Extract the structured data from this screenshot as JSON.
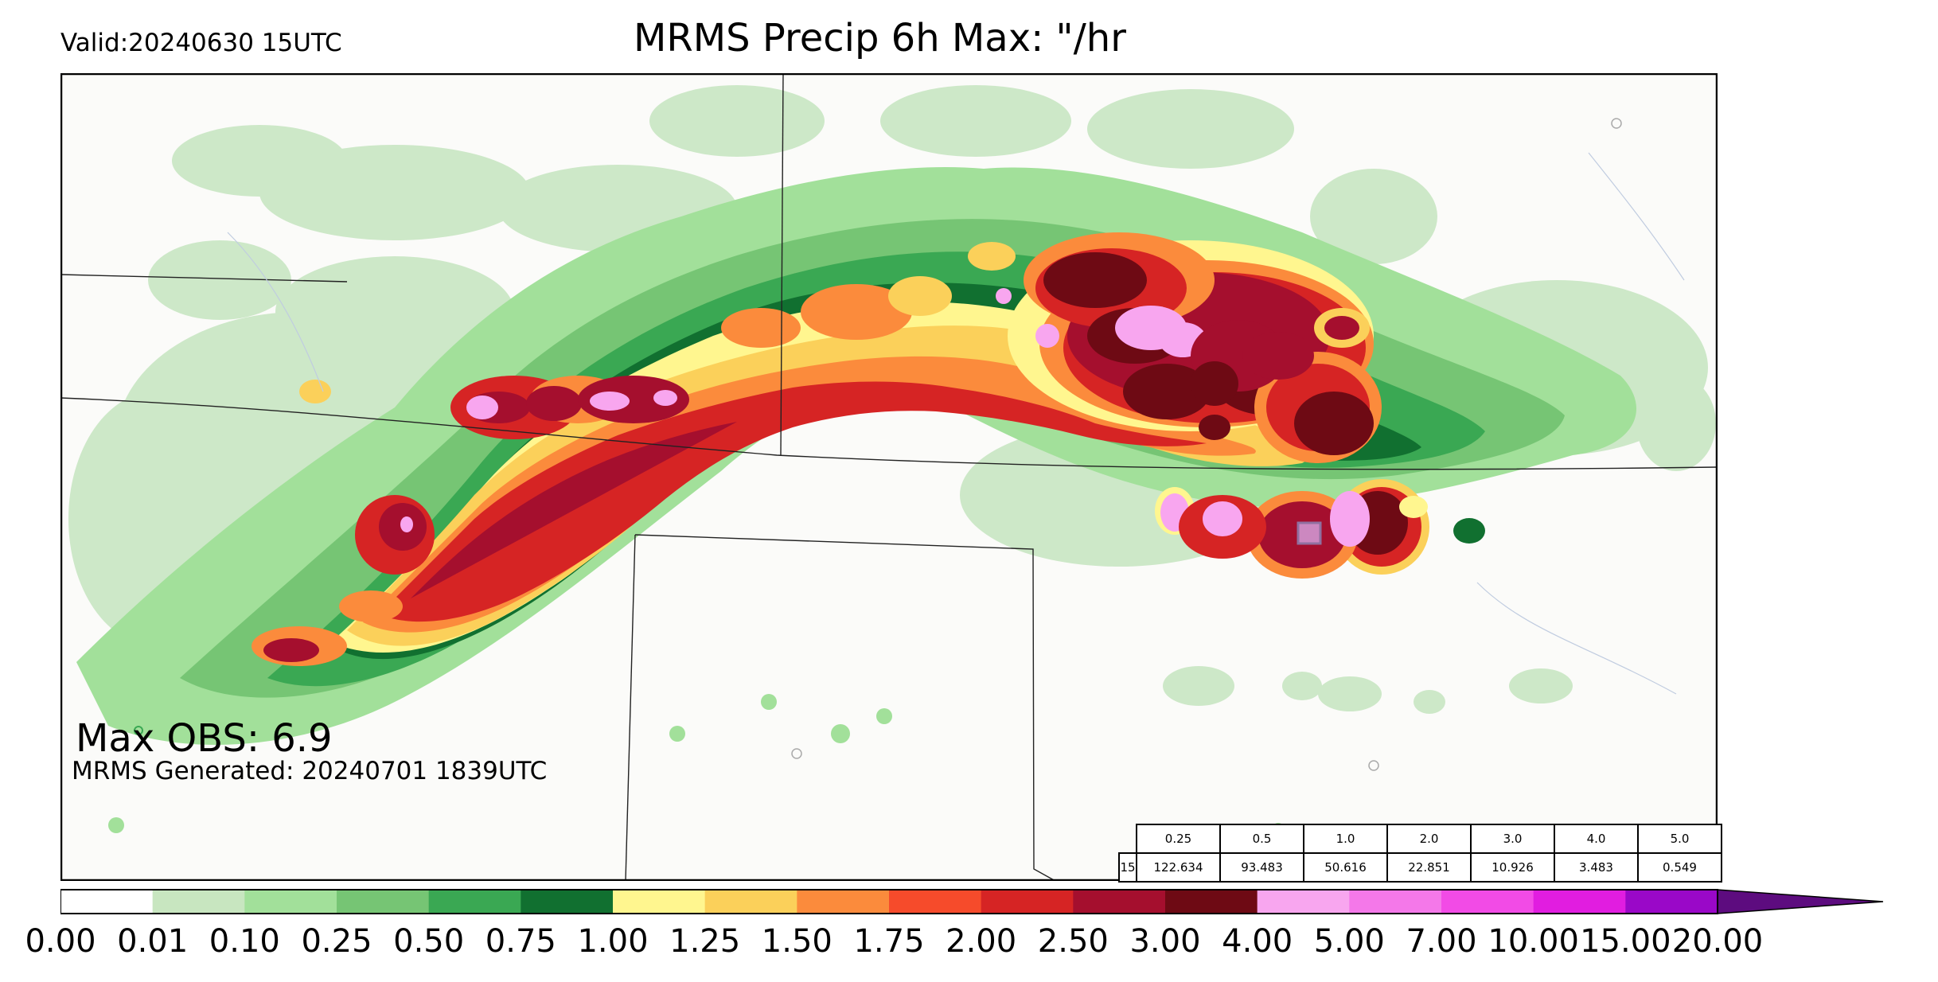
{
  "header": {
    "valid": "Valid:20240630 15UTC",
    "title": "MRMS Precip 6h Max: \"/hr"
  },
  "annotations": {
    "max_obs": "Max OBS: 6.9",
    "generated": "MRMS Generated: 20240701 1839UTC"
  },
  "colorbar": {
    "ticks": [
      "0.00",
      "0.01",
      "0.10",
      "0.25",
      "0.50",
      "0.75",
      "1.00",
      "1.25",
      "1.50",
      "1.75",
      "2.00",
      "2.50",
      "3.00",
      "4.00",
      "5.00",
      "7.00",
      "10.00",
      "15.00",
      "20.00"
    ],
    "colors": [
      "#ffffff",
      "#c8e6c0",
      "#a2e09a",
      "#76c574",
      "#3aa853",
      "#117030",
      "#fff68f",
      "#fbd05a",
      "#fb8b3c",
      "#f64b2b",
      "#d62424",
      "#a50f2e",
      "#6e0a14",
      "#f8a6ef",
      "#f478e9",
      "#f24be6",
      "#e11de0",
      "#9a08c8"
    ],
    "extend_color": "#5d0c7f"
  },
  "stats_table": {
    "row_label": "15",
    "thresholds": [
      "0.25",
      "0.5",
      "1.0",
      "2.0",
      "3.0",
      "4.0",
      "5.0"
    ],
    "values": [
      "122.634",
      "93.483",
      "50.616",
      "22.851",
      "10.926",
      "3.483",
      "0.549"
    ]
  }
}
